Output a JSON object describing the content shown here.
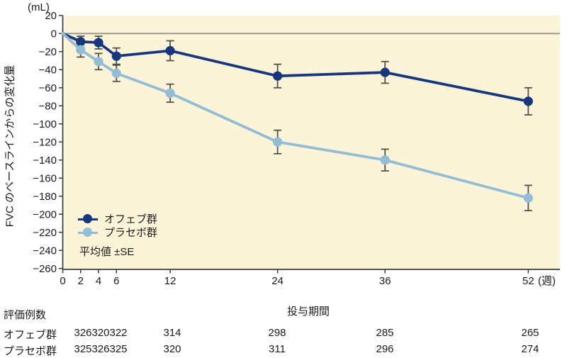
{
  "chart": {
    "y_unit": "(mL)",
    "x_unit": "(週)",
    "y_title": "FVC のベースラインからの変化量",
    "x_title": "投与期間"
  },
  "legend": {
    "items": [
      {
        "label": "オフェブ群",
        "color": "#17377d"
      },
      {
        "label": "プラセボ群",
        "color": "#93bdd5"
      }
    ],
    "note": "平均値 ±SE"
  },
  "chart_data": {
    "type": "line",
    "x": [
      0,
      2,
      4,
      6,
      12,
      24,
      36,
      52
    ],
    "x_tick_labels": [
      "0",
      "2",
      "4",
      "6",
      "12",
      "24",
      "36",
      "52"
    ],
    "y_ticks": [
      20,
      0,
      -20,
      -40,
      -60,
      -80,
      -100,
      -120,
      -140,
      -160,
      -180,
      -200,
      -220,
      -240,
      -260
    ],
    "series": [
      {
        "name": "オフェブ群",
        "color": "#17377d",
        "values": [
          0,
          -9,
          -10,
          -25,
          -19,
          -47,
          -43,
          -75
        ],
        "se": [
          0,
          6,
          7,
          9,
          11,
          13,
          12,
          15
        ]
      },
      {
        "name": "プラセボ群",
        "color": "#93bdd5",
        "values": [
          0,
          -18,
          -31,
          -44,
          -66,
          -120,
          -140,
          -182
        ],
        "se": [
          0,
          8,
          9,
          9,
          10,
          13,
          12,
          14
        ]
      }
    ],
    "title": "",
    "xlabel": "投与期間",
    "ylabel": "FVC のベースラインからの変化量 (mL)",
    "ylim": [
      -260,
      20
    ],
    "xlim": [
      0,
      55.5
    ],
    "error_bars": "平均値 ±SE",
    "legend_position": "lower-left",
    "grid": false
  },
  "table": {
    "caption": "評価例数",
    "rows": [
      {
        "label": "オフェブ群",
        "values": [
          "326",
          "320",
          "322",
          "314",
          "298",
          "285",
          "265"
        ]
      },
      {
        "label": "プラセボ群",
        "values": [
          "325",
          "326",
          "325",
          "320",
          "311",
          "296",
          "274"
        ]
      }
    ]
  },
  "colors": {
    "plot_bg": "#fcf4d9",
    "axis": "#3c3c3c",
    "zero_line": "#94938b",
    "error_bar": "#55514a",
    "text": "#1a1a1a"
  }
}
